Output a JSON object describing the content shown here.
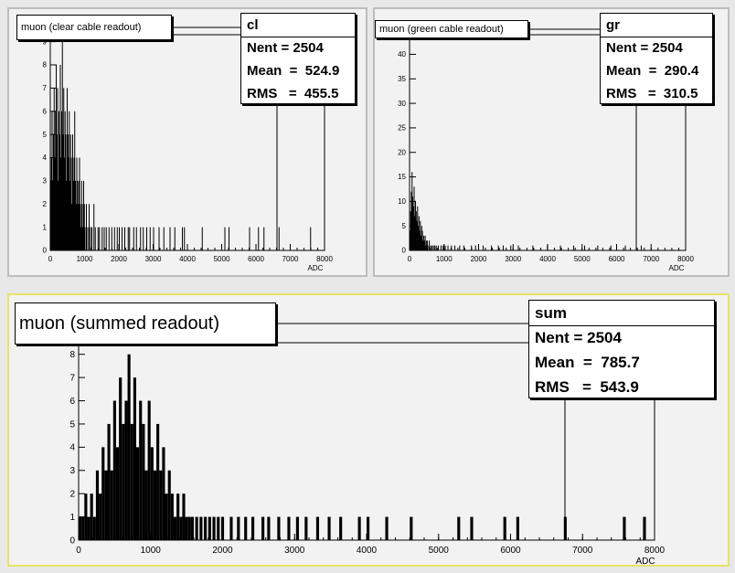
{
  "chart_data": [
    {
      "type": "histogram",
      "title": "muon (clear cable readout)",
      "xlabel": "ADC",
      "ylabel": "",
      "xlim": [
        0,
        8000
      ],
      "ylim": [
        0,
        9.3
      ],
      "x_ticks": [
        0,
        1000,
        2000,
        3000,
        4000,
        5000,
        6000,
        7000,
        8000
      ],
      "y_ticks": [
        0,
        1,
        2,
        3,
        4,
        5,
        6,
        7,
        8,
        9
      ],
      "stats": {
        "name": "cl",
        "entries_label": "Nent = 2504",
        "mean_label": "Mean  =  524.9",
        "rms_label": "RMS   =  455.5"
      },
      "bins": [
        [
          0,
          3
        ],
        [
          20,
          4
        ],
        [
          40,
          6
        ],
        [
          60,
          3
        ],
        [
          80,
          5
        ],
        [
          100,
          7
        ],
        [
          120,
          4
        ],
        [
          140,
          6
        ],
        [
          160,
          8
        ],
        [
          180,
          5
        ],
        [
          200,
          7
        ],
        [
          220,
          3
        ],
        [
          240,
          6
        ],
        [
          260,
          5
        ],
        [
          280,
          8
        ],
        [
          300,
          4
        ],
        [
          320,
          6
        ],
        [
          340,
          9
        ],
        [
          360,
          5
        ],
        [
          380,
          7
        ],
        [
          400,
          4
        ],
        [
          420,
          6
        ],
        [
          440,
          5
        ],
        [
          460,
          3
        ],
        [
          480,
          7
        ],
        [
          500,
          5
        ],
        [
          520,
          4
        ],
        [
          540,
          6
        ],
        [
          560,
          3
        ],
        [
          580,
          5
        ],
        [
          600,
          4
        ],
        [
          620,
          2
        ],
        [
          640,
          5
        ],
        [
          660,
          3
        ],
        [
          680,
          4
        ],
        [
          700,
          6
        ],
        [
          720,
          3
        ],
        [
          740,
          2
        ],
        [
          760,
          4
        ],
        [
          780,
          3
        ],
        [
          800,
          2
        ],
        [
          820,
          3
        ],
        [
          840,
          4
        ],
        [
          860,
          2
        ],
        [
          880,
          1
        ],
        [
          900,
          3
        ],
        [
          920,
          2
        ],
        [
          940,
          1
        ],
        [
          960,
          3
        ],
        [
          980,
          2
        ],
        [
          1000,
          1
        ],
        [
          1040,
          2
        ],
        [
          1080,
          1
        ],
        [
          1120,
          2
        ],
        [
          1160,
          1
        ],
        [
          1200,
          1
        ],
        [
          1260,
          2
        ],
        [
          1300,
          1
        ],
        [
          1380,
          1
        ],
        [
          1420,
          1
        ],
        [
          1500,
          1
        ],
        [
          1560,
          1
        ],
        [
          1620,
          1
        ],
        [
          1700,
          1
        ],
        [
          1780,
          1
        ],
        [
          1860,
          1
        ],
        [
          1940,
          1
        ],
        [
          2000,
          1
        ],
        [
          2080,
          1
        ],
        [
          2160,
          1
        ],
        [
          2260,
          1
        ],
        [
          2300,
          1
        ],
        [
          2420,
          1
        ],
        [
          2500,
          1
        ],
        [
          2620,
          1
        ],
        [
          2700,
          1
        ],
        [
          2800,
          1
        ],
        [
          2900,
          1
        ],
        [
          3000,
          1
        ],
        [
          3160,
          1
        ],
        [
          3300,
          1
        ],
        [
          3480,
          1
        ],
        [
          3620,
          1
        ],
        [
          3840,
          1
        ],
        [
          3900,
          1
        ],
        [
          4420,
          1
        ],
        [
          5080,
          1
        ],
        [
          5200,
          1
        ],
        [
          5800,
          1
        ],
        [
          6060,
          1
        ],
        [
          6220,
          1
        ],
        [
          6660,
          1
        ],
        [
          7580,
          1
        ]
      ]
    },
    {
      "type": "histogram",
      "title": "muon (green cable readout)",
      "xlabel": "ADC",
      "ylabel": "",
      "xlim": [
        0,
        8000
      ],
      "ylim": [
        0,
        44
      ],
      "x_ticks": [
        0,
        1000,
        2000,
        3000,
        4000,
        5000,
        6000,
        7000,
        8000
      ],
      "y_ticks": [
        0,
        5,
        10,
        15,
        20,
        25,
        30,
        35,
        40
      ],
      "stats": {
        "name": "gr",
        "entries_label": "Nent = 2504",
        "mean_label": "Mean  =  290.4",
        "rms_label": "RMS   =  310.5"
      },
      "bins": [
        [
          0,
          4
        ],
        [
          20,
          8
        ],
        [
          40,
          12
        ],
        [
          60,
          16
        ],
        [
          80,
          11
        ],
        [
          100,
          9
        ],
        [
          120,
          13
        ],
        [
          140,
          7
        ],
        [
          160,
          10
        ],
        [
          180,
          8
        ],
        [
          200,
          6
        ],
        [
          220,
          9
        ],
        [
          240,
          5
        ],
        [
          260,
          7
        ],
        [
          280,
          4
        ],
        [
          300,
          6
        ],
        [
          320,
          3
        ],
        [
          340,
          5
        ],
        [
          360,
          4
        ],
        [
          380,
          2
        ],
        [
          400,
          3
        ],
        [
          420,
          2
        ],
        [
          440,
          3
        ],
        [
          460,
          1
        ],
        [
          480,
          2
        ],
        [
          500,
          2
        ],
        [
          520,
          1
        ],
        [
          560,
          2
        ],
        [
          600,
          1
        ],
        [
          640,
          1
        ],
        [
          680,
          1
        ],
        [
          720,
          1
        ],
        [
          760,
          1
        ],
        [
          820,
          1
        ],
        [
          900,
          1
        ],
        [
          960,
          1
        ],
        [
          1020,
          1
        ],
        [
          1100,
          1
        ],
        [
          1200,
          1
        ],
        [
          1300,
          1
        ],
        [
          1440,
          1
        ],
        [
          1560,
          1
        ],
        [
          1780,
          1
        ],
        [
          1900,
          1
        ],
        [
          2120,
          1
        ],
        [
          2360,
          1
        ],
        [
          2560,
          1
        ],
        [
          2700,
          1
        ],
        [
          2920,
          1
        ],
        [
          3140,
          1
        ],
        [
          3560,
          1
        ],
        [
          3980,
          1
        ],
        [
          4360,
          1
        ],
        [
          4740,
          1
        ],
        [
          5060,
          1
        ],
        [
          5440,
          1
        ],
        [
          5820,
          1
        ],
        [
          6240,
          1
        ],
        [
          6700,
          1
        ]
      ]
    },
    {
      "type": "histogram",
      "title": "muon (summed readout)",
      "xlabel": "ADC",
      "ylabel": "",
      "xlim": [
        0,
        8000
      ],
      "ylim": [
        0,
        8.5
      ],
      "x_ticks": [
        0,
        1000,
        2000,
        3000,
        4000,
        5000,
        6000,
        7000,
        8000
      ],
      "y_ticks": [
        0,
        1,
        2,
        3,
        4,
        5,
        6,
        7,
        8
      ],
      "stats": {
        "name": "sum",
        "entries_label": "Nent = 2504",
        "mean_label": "Mean  =  785.7",
        "rms_label": "RMS   =  543.9"
      },
      "bins": [
        [
          0,
          1
        ],
        [
          40,
          1
        ],
        [
          80,
          2
        ],
        [
          120,
          1
        ],
        [
          160,
          2
        ],
        [
          200,
          1
        ],
        [
          240,
          3
        ],
        [
          280,
          2
        ],
        [
          320,
          4
        ],
        [
          360,
          3
        ],
        [
          400,
          5
        ],
        [
          440,
          3
        ],
        [
          480,
          6
        ],
        [
          520,
          4
        ],
        [
          560,
          7
        ],
        [
          600,
          5
        ],
        [
          640,
          6
        ],
        [
          680,
          8
        ],
        [
          720,
          5
        ],
        [
          760,
          7
        ],
        [
          800,
          4
        ],
        [
          840,
          6
        ],
        [
          880,
          5
        ],
        [
          920,
          3
        ],
        [
          960,
          6
        ],
        [
          1000,
          4
        ],
        [
          1040,
          3
        ],
        [
          1080,
          5
        ],
        [
          1120,
          3
        ],
        [
          1160,
          4
        ],
        [
          1200,
          2
        ],
        [
          1240,
          3
        ],
        [
          1280,
          2
        ],
        [
          1320,
          1
        ],
        [
          1360,
          2
        ],
        [
          1400,
          1
        ],
        [
          1440,
          2
        ],
        [
          1480,
          1
        ],
        [
          1520,
          1
        ],
        [
          1560,
          1
        ],
        [
          1620,
          1
        ],
        [
          1680,
          1
        ],
        [
          1740,
          1
        ],
        [
          1800,
          1
        ],
        [
          1860,
          1
        ],
        [
          1920,
          1
        ],
        [
          1980,
          1
        ],
        [
          2100,
          1
        ],
        [
          2200,
          1
        ],
        [
          2300,
          1
        ],
        [
          2400,
          1
        ],
        [
          2540,
          1
        ],
        [
          2620,
          1
        ],
        [
          2760,
          1
        ],
        [
          2900,
          1
        ],
        [
          3020,
          1
        ],
        [
          3140,
          1
        ],
        [
          3300,
          1
        ],
        [
          3460,
          1
        ],
        [
          3620,
          1
        ],
        [
          3880,
          1
        ],
        [
          4000,
          1
        ],
        [
          4260,
          1
        ],
        [
          4600,
          1
        ],
        [
          5260,
          1
        ],
        [
          5440,
          1
        ],
        [
          5900,
          1
        ],
        [
          6080,
          1
        ],
        [
          6740,
          1
        ],
        [
          7560,
          1
        ],
        [
          7840,
          1
        ]
      ]
    }
  ]
}
